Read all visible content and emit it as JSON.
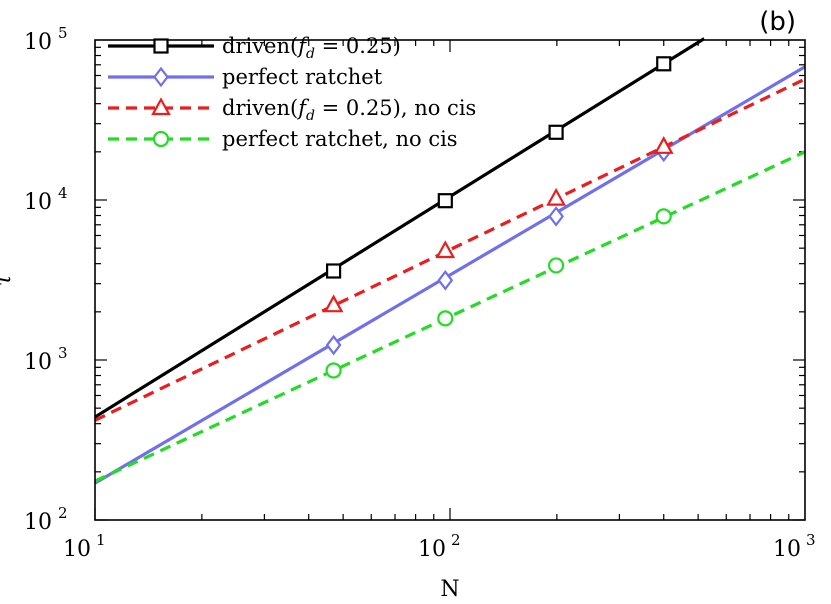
{
  "chart_data": {
    "type": "line",
    "panel_label": "(b)",
    "xlabel": "N",
    "ylabel": "τ",
    "xscale": "log",
    "yscale": "log",
    "xlim": [
      10,
      1000
    ],
    "ylim": [
      100,
      100000
    ],
    "x_ticks": [
      {
        "value": 10,
        "base": "10",
        "exp": "1"
      },
      {
        "value": 100,
        "base": "10",
        "exp": "2"
      },
      {
        "value": 1000,
        "base": "10",
        "exp": "3"
      }
    ],
    "y_ticks": [
      {
        "value": 100,
        "base": "10",
        "exp": "2"
      },
      {
        "value": 1000,
        "base": "10",
        "exp": "3"
      },
      {
        "value": 10000,
        "base": "10",
        "exp": "4"
      },
      {
        "value": 100000,
        "base": "10",
        "exp": "5"
      }
    ],
    "legend_position": "top-left",
    "series": [
      {
        "name": "driven($f_d=0.25$)",
        "legend_main": "driven(",
        "legend_math": "f",
        "legend_sub": "d",
        "legend_rest": " = 0.25)",
        "color": "#000000",
        "dash": "solid",
        "marker": "square",
        "line": [
          [
            10,
            440
          ],
          [
            520,
            102000
          ]
        ],
        "points": [
          [
            47,
            3600
          ],
          [
            97,
            9900
          ],
          [
            199,
            26500
          ],
          [
            400,
            71000
          ]
        ]
      },
      {
        "name": "perfect ratchet",
        "legend_main": "perfect ratchet",
        "color": "#7070ee",
        "dash": "solid",
        "marker": "diamond",
        "line": [
          [
            10,
            170
          ],
          [
            1000,
            68000
          ]
        ],
        "points": [
          [
            47,
            1240
          ],
          [
            97,
            3150
          ],
          [
            199,
            7900
          ],
          [
            400,
            20000
          ]
        ]
      },
      {
        "name": "driven($f_d=0.25$), no cis",
        "legend_main": "driven(",
        "legend_math": "f",
        "legend_sub": "d",
        "legend_rest": " = 0.25), no cis",
        "color": "#ee1c1c",
        "dash": "dashed",
        "marker": "triangle",
        "line": [
          [
            10,
            420
          ],
          [
            1000,
            57000
          ]
        ],
        "points": [
          [
            47,
            2200
          ],
          [
            97,
            4800
          ],
          [
            199,
            10200
          ],
          [
            400,
            21500
          ]
        ]
      },
      {
        "name": "perfect ratchet, no cis",
        "legend_main": "perfect ratchet, no cis",
        "color": "#22dd22",
        "dash": "dashed",
        "marker": "circle",
        "line": [
          [
            10,
            175
          ],
          [
            1000,
            20000
          ]
        ],
        "points": [
          [
            47,
            860
          ],
          [
            97,
            1820
          ],
          [
            199,
            3900
          ],
          [
            400,
            7900
          ]
        ]
      }
    ]
  }
}
